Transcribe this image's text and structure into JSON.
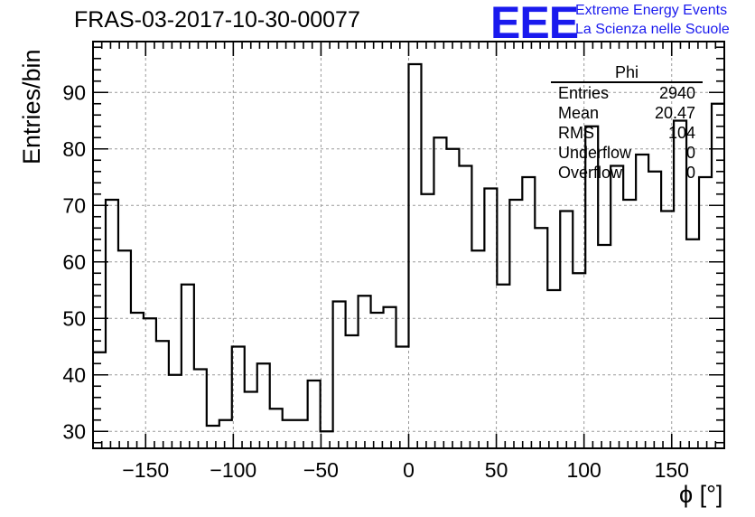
{
  "title": "FRAS-03-2017-10-30-00077",
  "logo": {
    "mark": "EEE",
    "line1": "Extreme Energy Events",
    "line2": "La Scienza nelle Scuole",
    "color": "#1a1aee"
  },
  "stats": {
    "title": "Phi",
    "rows": [
      {
        "key": "Entries",
        "value": "2940"
      },
      {
        "key": "Mean",
        "value": "20.47"
      },
      {
        "key": "RMS",
        "value": "104"
      },
      {
        "key": "Underflow",
        "value": "0"
      },
      {
        "key": "Overflow",
        "value": "0"
      }
    ]
  },
  "chart_data": {
    "type": "histogram",
    "xlabel": "ϕ [°]",
    "ylabel": "Entries/bin",
    "xlim": [
      -180,
      180
    ],
    "ylim": [
      27,
      99
    ],
    "bin_width": 7.2,
    "x_major_ticks": [
      -150,
      -100,
      -50,
      0,
      50,
      100,
      150
    ],
    "y_major_ticks": [
      30,
      40,
      50,
      60,
      70,
      80,
      90
    ],
    "grid": true,
    "values": [
      44,
      71,
      62,
      51,
      50,
      46,
      40,
      56,
      41,
      31,
      32,
      45,
      37,
      42,
      34,
      32,
      32,
      39,
      30,
      53,
      47,
      54,
      51,
      52,
      45,
      95,
      72,
      82,
      80,
      77,
      62,
      73,
      56,
      71,
      75,
      66,
      55,
      69,
      58,
      84,
      63,
      77,
      71,
      79,
      76,
      69,
      85,
      64,
      75,
      88
    ]
  }
}
